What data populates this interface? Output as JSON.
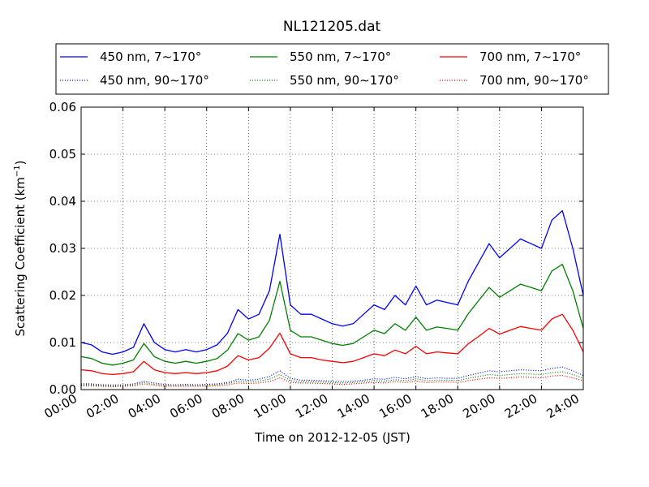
{
  "chart_data": {
    "type": "line",
    "title": "NL121205.dat",
    "xlabel": "Time on 2012-12-05 (JST)",
    "ylabel": "Scattering Coefficient (km",
    "ylabel_sup": "−1",
    "ylabel_close": ")",
    "xlim": [
      0,
      24
    ],
    "ylim": [
      0,
      0.06
    ],
    "grid": true,
    "legend_position": "top",
    "x_ticks": [
      0,
      2,
      4,
      6,
      8,
      10,
      12,
      14,
      16,
      18,
      20,
      22,
      24
    ],
    "x_tick_labels": [
      "00:00",
      "02:00",
      "04:00",
      "06:00",
      "08:00",
      "10:00",
      "12:00",
      "14:00",
      "16:00",
      "18:00",
      "20:00",
      "22:00",
      "24:00"
    ],
    "y_ticks": [
      0,
      0.01,
      0.02,
      0.03,
      0.04,
      0.05,
      0.06
    ],
    "y_tick_labels": [
      "0.00",
      "0.01",
      "0.02",
      "0.03",
      "0.04",
      "0.05",
      "0.06"
    ],
    "x": [
      0,
      0.5,
      1,
      1.5,
      2,
      2.5,
      3,
      3.5,
      4,
      4.5,
      5,
      5.5,
      6,
      6.5,
      7,
      7.5,
      8,
      8.5,
      9,
      9.5,
      10,
      10.5,
      11,
      11.5,
      12,
      12.5,
      13,
      13.5,
      14,
      14.5,
      15,
      15.5,
      16,
      16.5,
      17,
      17.5,
      18,
      18.5,
      19,
      19.5,
      20,
      20.5,
      21,
      21.5,
      22,
      22.5,
      23,
      23.5,
      24
    ],
    "series": [
      {
        "name": "450 nm, 7∼170°",
        "color": "#0000ff",
        "style": "solid",
        "values": [
          0.01,
          0.0095,
          0.008,
          0.0075,
          0.008,
          0.009,
          0.014,
          0.01,
          0.0085,
          0.008,
          0.0085,
          0.008,
          0.0085,
          0.0095,
          0.012,
          0.017,
          0.015,
          0.016,
          0.021,
          0.033,
          0.018,
          0.016,
          0.016,
          0.015,
          0.014,
          0.0135,
          0.014,
          0.016,
          0.018,
          0.017,
          0.02,
          0.018,
          0.022,
          0.018,
          0.019,
          0.0185,
          0.018,
          0.023,
          0.027,
          0.031,
          0.028,
          0.03,
          0.032,
          0.031,
          0.03,
          0.036,
          0.038,
          0.03,
          0.02
        ]
      },
      {
        "name": "450 nm, 90∼170°",
        "color": "#0000ff",
        "style": "dotted",
        "values": [
          0.0012,
          0.0012,
          0.001,
          0.001,
          0.001,
          0.0012,
          0.0018,
          0.0014,
          0.0011,
          0.001,
          0.0011,
          0.001,
          0.0011,
          0.0012,
          0.0015,
          0.0022,
          0.002,
          0.0022,
          0.0028,
          0.004,
          0.0024,
          0.002,
          0.002,
          0.0019,
          0.0018,
          0.0017,
          0.0018,
          0.002,
          0.0023,
          0.0022,
          0.0026,
          0.0023,
          0.0028,
          0.0023,
          0.0025,
          0.0024,
          0.0024,
          0.003,
          0.0035,
          0.004,
          0.0038,
          0.004,
          0.0042,
          0.0041,
          0.004,
          0.0045,
          0.0048,
          0.004,
          0.003
        ]
      },
      {
        "name": "550 nm, 7∼170°",
        "color": "#008000",
        "style": "solid",
        "values": [
          0.007,
          0.0066,
          0.0056,
          0.0052,
          0.0056,
          0.0063,
          0.0098,
          0.007,
          0.006,
          0.0056,
          0.006,
          0.0056,
          0.006,
          0.0066,
          0.0084,
          0.0119,
          0.0105,
          0.0112,
          0.0147,
          0.023,
          0.0126,
          0.0112,
          0.0112,
          0.0105,
          0.0098,
          0.0094,
          0.0098,
          0.0112,
          0.0126,
          0.0119,
          0.014,
          0.0126,
          0.0154,
          0.0126,
          0.0133,
          0.013,
          0.0126,
          0.0161,
          0.0189,
          0.0217,
          0.0196,
          0.021,
          0.0224,
          0.0217,
          0.021,
          0.0252,
          0.0266,
          0.021,
          0.013
        ]
      },
      {
        "name": "550 nm, 90∼170°",
        "color": "#008000",
        "style": "dotted",
        "values": [
          0.001,
          0.001,
          0.0009,
          0.0008,
          0.0009,
          0.001,
          0.0015,
          0.0011,
          0.0009,
          0.0008,
          0.0009,
          0.0008,
          0.0009,
          0.001,
          0.0013,
          0.0018,
          0.0016,
          0.0018,
          0.0022,
          0.0032,
          0.0019,
          0.0017,
          0.0017,
          0.0016,
          0.0015,
          0.0014,
          0.0015,
          0.0017,
          0.0019,
          0.0018,
          0.0021,
          0.0019,
          0.0023,
          0.0019,
          0.002,
          0.002,
          0.0019,
          0.0024,
          0.0028,
          0.0032,
          0.003,
          0.0032,
          0.0034,
          0.0033,
          0.0032,
          0.0036,
          0.0038,
          0.0032,
          0.0024
        ]
      },
      {
        "name": "700 nm, 7∼170°",
        "color": "#ff0000",
        "style": "solid",
        "values": [
          0.0042,
          0.004,
          0.0034,
          0.0032,
          0.0034,
          0.0038,
          0.006,
          0.0042,
          0.0036,
          0.0034,
          0.0036,
          0.0034,
          0.0036,
          0.004,
          0.005,
          0.0072,
          0.0063,
          0.0068,
          0.0088,
          0.012,
          0.0076,
          0.0068,
          0.0068,
          0.0063,
          0.006,
          0.0057,
          0.006,
          0.0068,
          0.0076,
          0.0072,
          0.0084,
          0.0076,
          0.0092,
          0.0076,
          0.008,
          0.0078,
          0.0076,
          0.0097,
          0.0113,
          0.013,
          0.0118,
          0.0126,
          0.0134,
          0.013,
          0.0126,
          0.015,
          0.016,
          0.0126,
          0.008
        ]
      },
      {
        "name": "700 nm, 90∼170°",
        "color": "#ff0000",
        "style": "dotted",
        "values": [
          0.0008,
          0.0008,
          0.0007,
          0.0006,
          0.0007,
          0.0008,
          0.0012,
          0.0009,
          0.0007,
          0.0007,
          0.0007,
          0.0007,
          0.0007,
          0.0008,
          0.001,
          0.0014,
          0.0013,
          0.0014,
          0.0017,
          0.0025,
          0.0015,
          0.0014,
          0.0014,
          0.0013,
          0.0012,
          0.0011,
          0.0012,
          0.0014,
          0.0015,
          0.0014,
          0.0017,
          0.0015,
          0.0018,
          0.0015,
          0.0016,
          0.0016,
          0.0015,
          0.0019,
          0.0022,
          0.0025,
          0.0024,
          0.0025,
          0.0027,
          0.0026,
          0.0025,
          0.0029,
          0.003,
          0.0025,
          0.0019
        ]
      }
    ]
  }
}
